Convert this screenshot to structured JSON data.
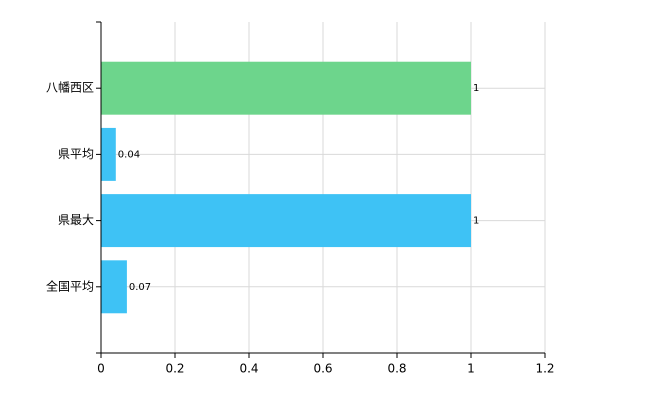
{
  "chart_data": {
    "type": "bar",
    "orientation": "horizontal",
    "categories": [
      "八幡西区",
      "県平均",
      "県最大",
      "全国平均"
    ],
    "values": [
      1,
      0.04,
      1,
      0.07
    ],
    "colors": [
      "#6dd58c",
      "#3ec2f5",
      "#3ec2f5",
      "#3ec2f5"
    ],
    "xlim": [
      0,
      1.2
    ],
    "xticks": [
      0,
      0.2,
      0.4,
      0.6,
      0.8,
      1,
      1.2
    ],
    "grid": true
  }
}
